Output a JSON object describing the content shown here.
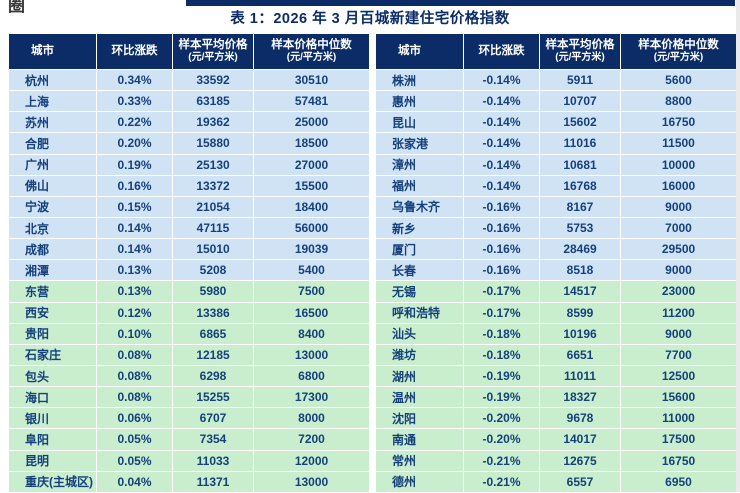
{
  "title": "表 1：2026 年 3 月百城新建住宅价格指数",
  "corner_text": "圈",
  "columns": {
    "city": "城市",
    "change": "环比涨跌",
    "avg_line1": "样本平均价格",
    "avg_line2": "(元/平方米)",
    "median_line1": "样本价格中位数",
    "median_line2": "(元/平方米)"
  },
  "green_from_index": 10,
  "colors": {
    "navy": "#0b2c66",
    "row_blue": "#cfe3f5",
    "row_green": "#c8eecd",
    "text_navy": "#16407c"
  },
  "tables": [
    {
      "name": "left",
      "rows": [
        {
          "city": "杭州",
          "change": "0.34%",
          "avg": "33592",
          "median": "30510"
        },
        {
          "city": "上海",
          "change": "0.33%",
          "avg": "63185",
          "median": "57481"
        },
        {
          "city": "苏州",
          "change": "0.22%",
          "avg": "19362",
          "median": "25000"
        },
        {
          "city": "合肥",
          "change": "0.20%",
          "avg": "15880",
          "median": "18500"
        },
        {
          "city": "广州",
          "change": "0.19%",
          "avg": "25130",
          "median": "27000"
        },
        {
          "city": "佛山",
          "change": "0.16%",
          "avg": "13372",
          "median": "15500"
        },
        {
          "city": "宁波",
          "change": "0.15%",
          "avg": "21054",
          "median": "18400"
        },
        {
          "city": "北京",
          "change": "0.14%",
          "avg": "47115",
          "median": "56000"
        },
        {
          "city": "成都",
          "change": "0.14%",
          "avg": "15010",
          "median": "19039"
        },
        {
          "city": "湘潭",
          "change": "0.13%",
          "avg": "5208",
          "median": "5400"
        },
        {
          "city": "东营",
          "change": "0.13%",
          "avg": "5980",
          "median": "7500"
        },
        {
          "city": "西安",
          "change": "0.12%",
          "avg": "13386",
          "median": "16500"
        },
        {
          "city": "贵阳",
          "change": "0.10%",
          "avg": "6865",
          "median": "8400"
        },
        {
          "city": "石家庄",
          "change": "0.08%",
          "avg": "12185",
          "median": "13000"
        },
        {
          "city": "包头",
          "change": "0.08%",
          "avg": "6298",
          "median": "6800"
        },
        {
          "city": "海口",
          "change": "0.08%",
          "avg": "15255",
          "median": "17300"
        },
        {
          "city": "银川",
          "change": "0.06%",
          "avg": "6707",
          "median": "8000"
        },
        {
          "city": "阜阳",
          "change": "0.05%",
          "avg": "7354",
          "median": "7200"
        },
        {
          "city": "昆明",
          "change": "0.05%",
          "avg": "11033",
          "median": "12000"
        },
        {
          "city": "重庆(主城区)",
          "change": "0.04%",
          "avg": "11371",
          "median": "13000"
        }
      ]
    },
    {
      "name": "right",
      "rows": [
        {
          "city": "株洲",
          "change": "-0.14%",
          "avg": "5911",
          "median": "5600"
        },
        {
          "city": "惠州",
          "change": "-0.14%",
          "avg": "10707",
          "median": "8800"
        },
        {
          "city": "昆山",
          "change": "-0.14%",
          "avg": "15602",
          "median": "16750"
        },
        {
          "city": "张家港",
          "change": "-0.14%",
          "avg": "11016",
          "median": "11500"
        },
        {
          "city": "漳州",
          "change": "-0.14%",
          "avg": "10681",
          "median": "10000"
        },
        {
          "city": "福州",
          "change": "-0.14%",
          "avg": "16768",
          "median": "16000"
        },
        {
          "city": "乌鲁木齐",
          "change": "-0.16%",
          "avg": "8167",
          "median": "9000"
        },
        {
          "city": "新乡",
          "change": "-0.16%",
          "avg": "5753",
          "median": "7000"
        },
        {
          "city": "厦门",
          "change": "-0.16%",
          "avg": "28469",
          "median": "29500"
        },
        {
          "city": "长春",
          "change": "-0.16%",
          "avg": "8518",
          "median": "9000"
        },
        {
          "city": "无锡",
          "change": "-0.17%",
          "avg": "14517",
          "median": "23000"
        },
        {
          "city": "呼和浩特",
          "change": "-0.17%",
          "avg": "8599",
          "median": "11200"
        },
        {
          "city": "汕头",
          "change": "-0.18%",
          "avg": "10196",
          "median": "9000"
        },
        {
          "city": "潍坊",
          "change": "-0.18%",
          "avg": "6651",
          "median": "7700"
        },
        {
          "city": "湖州",
          "change": "-0.19%",
          "avg": "11011",
          "median": "12500"
        },
        {
          "city": "温州",
          "change": "-0.19%",
          "avg": "18327",
          "median": "15600"
        },
        {
          "city": "沈阳",
          "change": "-0.20%",
          "avg": "9678",
          "median": "11000"
        },
        {
          "city": "南通",
          "change": "-0.20%",
          "avg": "14017",
          "median": "17500"
        },
        {
          "city": "常州",
          "change": "-0.21%",
          "avg": "12675",
          "median": "16750"
        },
        {
          "city": "德州",
          "change": "-0.21%",
          "avg": "6557",
          "median": "6950"
        }
      ]
    }
  ]
}
